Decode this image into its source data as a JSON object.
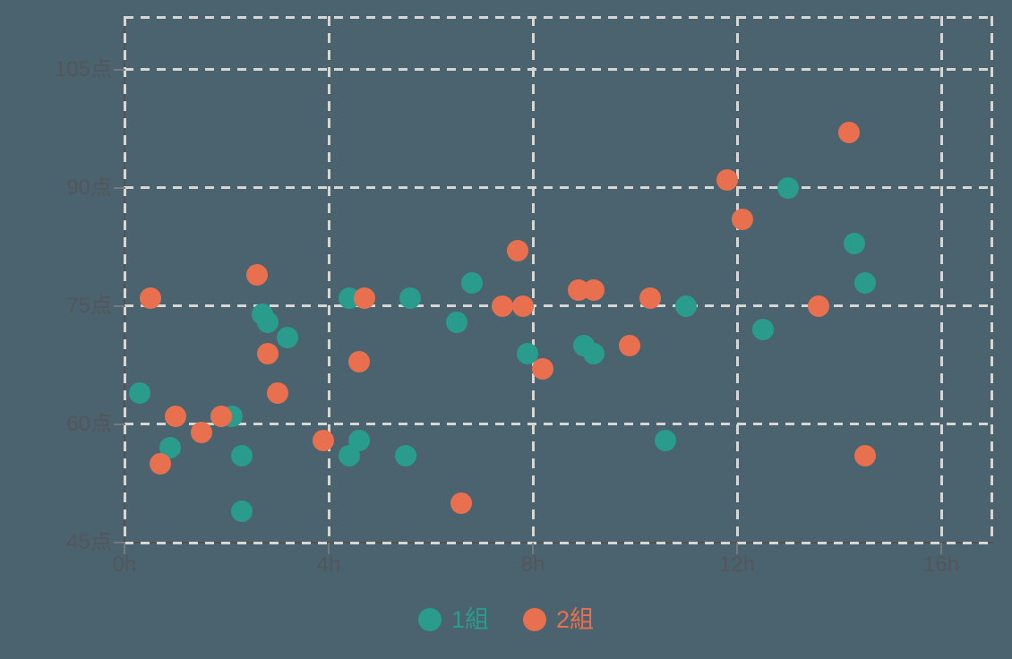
{
  "page": {
    "background_color": "#4a636e"
  },
  "chart_data": {
    "type": "scatter",
    "title": "",
    "xlabel": "",
    "ylabel": "",
    "x_unit": "h",
    "y_unit": "点",
    "xlim": [
      0,
      17
    ],
    "ylim": [
      45,
      111.8
    ],
    "grid": "dashed",
    "legend_position": "bottom-center",
    "x_ticks": [
      {
        "value": 0,
        "label": "0h"
      },
      {
        "value": 4,
        "label": "4h"
      },
      {
        "value": 8,
        "label": "8h"
      },
      {
        "value": 12,
        "label": "12h"
      },
      {
        "value": 16,
        "label": "16h"
      }
    ],
    "y_ticks": [
      {
        "value": 45,
        "label": "45点"
      },
      {
        "value": 60,
        "label": "60点"
      },
      {
        "value": 75,
        "label": "75点"
      },
      {
        "value": 90,
        "label": "90点"
      },
      {
        "value": 105,
        "label": "105点"
      }
    ],
    "series": [
      {
        "name": "1組",
        "color": "#2a9c8e",
        "points": [
          [
            0.3,
            64
          ],
          [
            0.9,
            57
          ],
          [
            2.1,
            61
          ],
          [
            2.3,
            56
          ],
          [
            2.3,
            49
          ],
          [
            2.7,
            74
          ],
          [
            2.8,
            73
          ],
          [
            3.2,
            71
          ],
          [
            4.4,
            76
          ],
          [
            4.4,
            56
          ],
          [
            4.6,
            58
          ],
          [
            5.5,
            56
          ],
          [
            5.6,
            76
          ],
          [
            6.5,
            73
          ],
          [
            6.8,
            78
          ],
          [
            7.9,
            69
          ],
          [
            9.0,
            70
          ],
          [
            9.2,
            69
          ],
          [
            10.6,
            58
          ],
          [
            11.0,
            75
          ],
          [
            12.5,
            72
          ],
          [
            13.0,
            90
          ],
          [
            14.3,
            83
          ],
          [
            14.5,
            78
          ]
        ]
      },
      {
        "name": "2組",
        "color": "#e8704e",
        "points": [
          [
            0.5,
            76
          ],
          [
            0.7,
            55
          ],
          [
            1.0,
            61
          ],
          [
            1.5,
            59
          ],
          [
            1.9,
            61
          ],
          [
            2.6,
            79
          ],
          [
            2.8,
            69
          ],
          [
            3.0,
            64
          ],
          [
            3.9,
            58
          ],
          [
            4.6,
            68
          ],
          [
            4.7,
            76
          ],
          [
            6.6,
            50
          ],
          [
            7.4,
            75
          ],
          [
            7.7,
            82
          ],
          [
            7.8,
            75
          ],
          [
            8.2,
            67
          ],
          [
            8.9,
            77
          ],
          [
            9.2,
            77
          ],
          [
            9.9,
            70
          ],
          [
            10.3,
            76
          ],
          [
            11.8,
            91
          ],
          [
            12.1,
            86
          ],
          [
            13.6,
            75
          ],
          [
            14.2,
            97
          ],
          [
            14.5,
            56
          ]
        ]
      }
    ],
    "colors": {
      "gridline": "#d6d6d4",
      "axis": "#515254",
      "tick": "#77797c",
      "tick_label": "#53565a"
    }
  }
}
